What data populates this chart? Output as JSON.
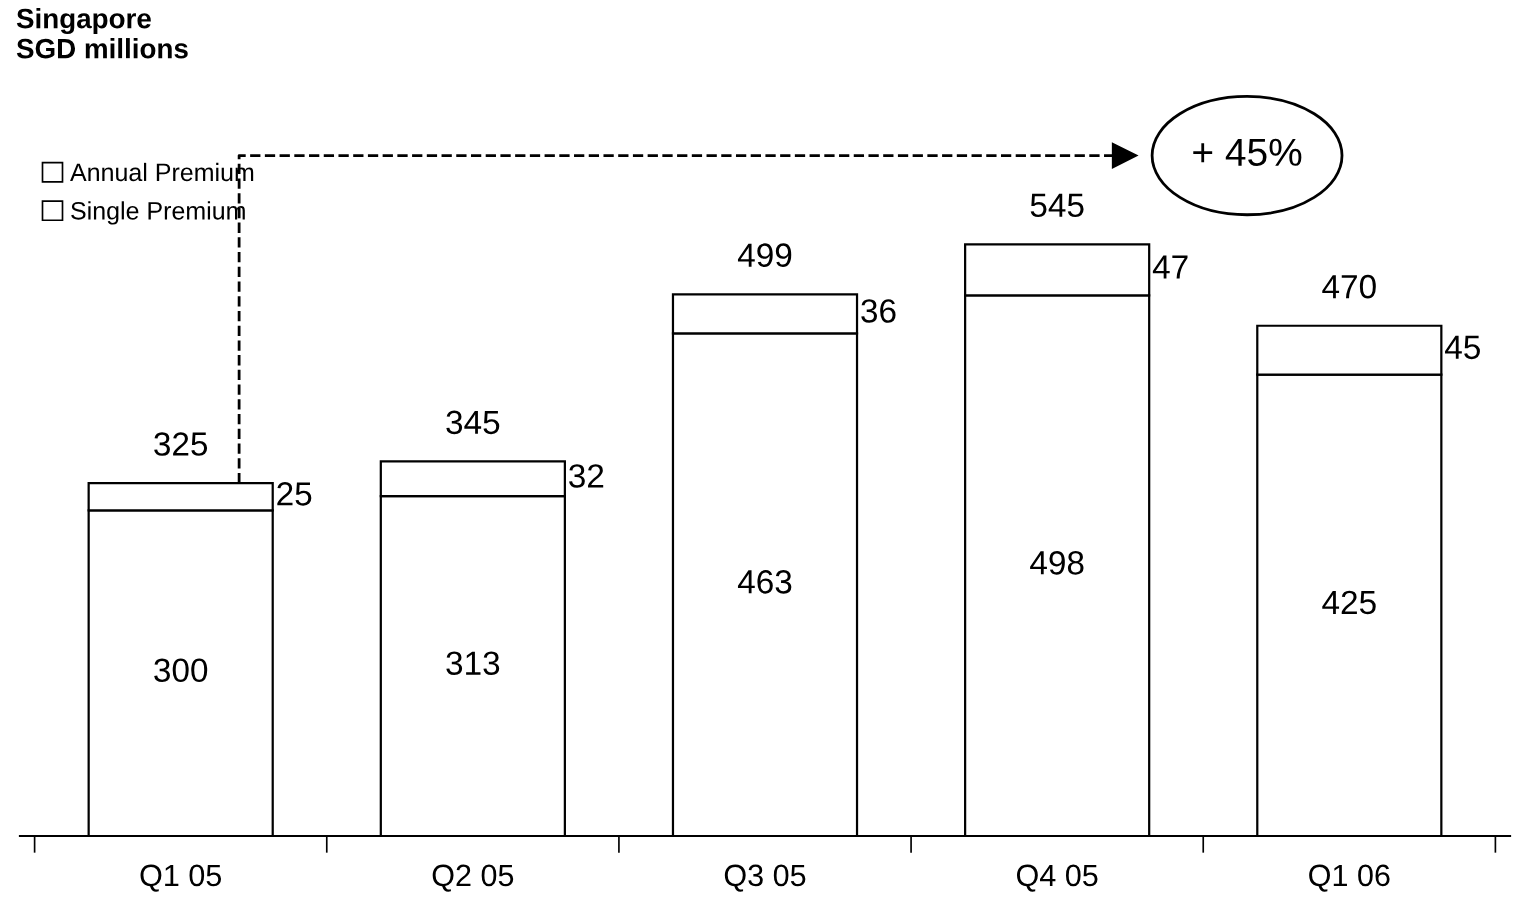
{
  "chart_data": {
    "type": "bar",
    "stacked": true,
    "title": "Singapore\nSGD millions",
    "categories": [
      "Q1 05",
      "Q2 05",
      "Q3 05",
      "Q4 05",
      "Q1 06"
    ],
    "series": [
      {
        "name": "Single Premium",
        "color": "#ffffff",
        "values": [
          300,
          313,
          463,
          498,
          425
        ]
      },
      {
        "name": "Annual Premium",
        "color": "#ffffff",
        "values": [
          25,
          32,
          36,
          47,
          45
        ]
      }
    ],
    "totals": [
      "325",
      "345",
      "499",
      "545",
      "470"
    ],
    "data_labels": true,
    "legend": "top left",
    "grid": false,
    "annotations": [
      "+ 45%"
    ]
  }
}
